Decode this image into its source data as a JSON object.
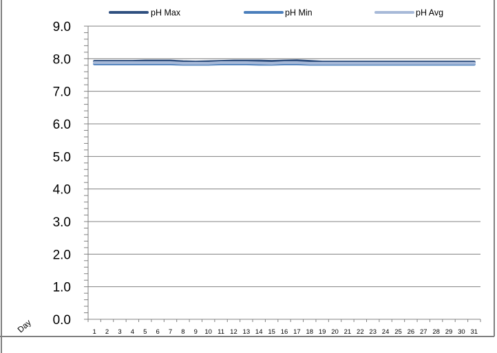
{
  "chart_data": {
    "type": "line",
    "title": "",
    "xlabel": "Day",
    "ylabel": "",
    "ylim": [
      0,
      9
    ],
    "yticks": [
      "0.0",
      "1.0",
      "2.0",
      "3.0",
      "4.0",
      "5.0",
      "6.0",
      "7.0",
      "8.0",
      "9.0"
    ],
    "x": [
      1,
      2,
      3,
      4,
      5,
      6,
      7,
      8,
      9,
      10,
      11,
      12,
      13,
      14,
      15,
      16,
      17,
      18,
      19,
      20,
      21,
      22,
      23,
      24,
      25,
      26,
      27,
      28,
      29,
      30,
      31
    ],
    "grid": true,
    "legend_position": "top",
    "series": [
      {
        "name": "pH Max",
        "color": "#2f4f7f",
        "values": [
          7.92,
          7.92,
          7.92,
          7.92,
          7.93,
          7.93,
          7.93,
          7.91,
          7.9,
          7.91,
          7.92,
          7.93,
          7.93,
          7.93,
          7.92,
          7.93,
          7.94,
          7.92,
          7.9,
          7.9,
          7.9,
          7.9,
          7.9,
          7.9,
          7.9,
          7.9,
          7.9,
          7.9,
          7.9,
          7.9,
          7.9
        ]
      },
      {
        "name": "pH Min",
        "color": "#4a7ebb",
        "values": [
          7.84,
          7.84,
          7.84,
          7.84,
          7.84,
          7.84,
          7.84,
          7.83,
          7.83,
          7.83,
          7.84,
          7.84,
          7.84,
          7.83,
          7.83,
          7.84,
          7.84,
          7.83,
          7.83,
          7.83,
          7.83,
          7.83,
          7.83,
          7.83,
          7.83,
          7.83,
          7.83,
          7.83,
          7.83,
          7.83,
          7.83
        ]
      },
      {
        "name": "pH Avg",
        "color": "#a7b9d8",
        "values": [
          7.88,
          7.88,
          7.88,
          7.88,
          7.88,
          7.88,
          7.88,
          7.86,
          7.86,
          7.86,
          7.88,
          7.88,
          7.88,
          7.87,
          7.86,
          7.88,
          7.88,
          7.86,
          7.86,
          7.86,
          7.86,
          7.86,
          7.86,
          7.86,
          7.86,
          7.86,
          7.86,
          7.86,
          7.86,
          7.86,
          7.86
        ]
      }
    ]
  }
}
